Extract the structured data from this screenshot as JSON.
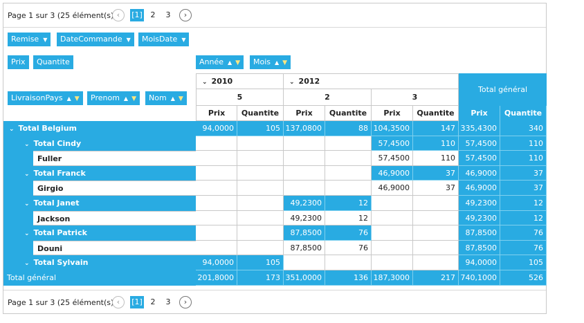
{
  "pager": {
    "info": "Page 1 sur 3 (25 élément(s))",
    "prev_icon": "chevron-left-icon",
    "next_icon": "chevron-right-icon",
    "current": "[1]",
    "pages": [
      "2",
      "3"
    ]
  },
  "filter_area": {
    "fields": [
      "Remise",
      "DateCommande",
      "MoisDate"
    ]
  },
  "data_area": {
    "fields": [
      "Prix",
      "Quantite"
    ]
  },
  "column_area": {
    "fields": [
      "Année",
      "Mois"
    ]
  },
  "row_area": {
    "fields": [
      "LivraisonPays",
      "Prenom",
      "Nom"
    ]
  },
  "columns": {
    "years": [
      "2010",
      "2012"
    ],
    "months": [
      "5",
      "2",
      "3"
    ],
    "grand_total_label": "Total général",
    "measures": [
      "Prix",
      "Quantite"
    ]
  },
  "rows": [
    {
      "label": "Total Belgium",
      "cells": [
        "94,0000",
        "105",
        "137,0800",
        "88",
        "104,3500",
        "147",
        "335,4300",
        "340"
      ]
    },
    {
      "label": "Total Cindy",
      "cells": [
        "",
        "",
        "",
        "",
        "57,4500",
        "110",
        "57,4500",
        "110"
      ]
    },
    {
      "label": "Fuller",
      "cells": [
        "",
        "",
        "",
        "",
        "57,4500",
        "110",
        "57,4500",
        "110"
      ]
    },
    {
      "label": "Total Franck",
      "cells": [
        "",
        "",
        "",
        "",
        "46,9000",
        "37",
        "46,9000",
        "37"
      ]
    },
    {
      "label": "Girgio",
      "cells": [
        "",
        "",
        "",
        "",
        "46,9000",
        "37",
        "46,9000",
        "37"
      ]
    },
    {
      "label": "Total Janet",
      "cells": [
        "",
        "",
        "49,2300",
        "12",
        "",
        "",
        "49,2300",
        "12"
      ]
    },
    {
      "label": "Jackson",
      "cells": [
        "",
        "",
        "49,2300",
        "12",
        "",
        "",
        "49,2300",
        "12"
      ]
    },
    {
      "label": "Total Patrick",
      "cells": [
        "",
        "",
        "87,8500",
        "76",
        "",
        "",
        "87,8500",
        "76"
      ]
    },
    {
      "label": "Douni",
      "cells": [
        "",
        "",
        "87,8500",
        "76",
        "",
        "",
        "87,8500",
        "76"
      ]
    },
    {
      "label": "Total Sylvain",
      "cells": [
        "94,0000",
        "105",
        "",
        "",
        "",
        "",
        "94,0000",
        "105"
      ]
    }
  ],
  "grand_total": {
    "label": "Total général",
    "cells": [
      "201,8000",
      "173",
      "351,0000",
      "136",
      "187,3000",
      "217",
      "740,1000",
      "526"
    ]
  }
}
